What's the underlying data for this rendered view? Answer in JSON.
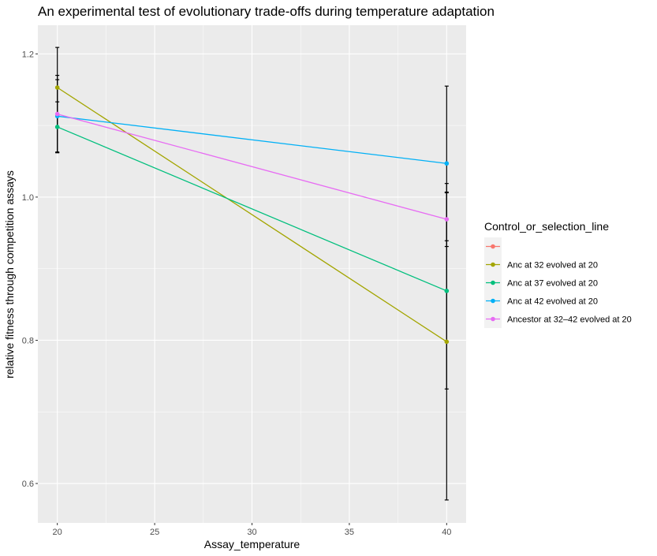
{
  "chart_data": {
    "type": "line",
    "title": "An experimental test of evolutionary trade-offs during temperature adaptation",
    "xlabel": "Assay_temperature",
    "ylabel": "relative fitness through competition assays",
    "xlim": [
      19,
      41
    ],
    "ylim": [
      0.545,
      1.24
    ],
    "x_ticks": [
      20,
      25,
      30,
      35,
      40
    ],
    "x_tick_labels": [
      "20",
      "25",
      "30",
      "35",
      "40"
    ],
    "y_ticks": [
      0.6,
      0.8,
      1.0,
      1.2
    ],
    "y_tick_labels": [
      "0.6",
      "0.8",
      "1.0",
      "1.2"
    ],
    "grid": true,
    "legend": {
      "title": "Control_or_selection_line",
      "position": "right"
    },
    "series": [
      {
        "name": "",
        "color": "#F8766D",
        "points": []
      },
      {
        "name": "Anc at 32 evolved at 20",
        "color": "#A3A500",
        "points": [
          {
            "x": 20,
            "y": 1.153,
            "ymin": 1.097,
            "ymax": 1.209
          },
          {
            "x": 40,
            "y": 0.798,
            "ymin": 0.577,
            "ymax": 1.019
          }
        ]
      },
      {
        "name": "Anc at 37 evolved at 20",
        "color": "#00BF7D",
        "points": [
          {
            "x": 20,
            "y": 1.098,
            "ymin": 1.063,
            "ymax": 1.133
          },
          {
            "x": 40,
            "y": 0.869,
            "ymin": 0.732,
            "ymax": 1.006
          }
        ]
      },
      {
        "name": "Anc at 42 evolved at 20",
        "color": "#00B0F6",
        "points": [
          {
            "x": 20,
            "y": 1.113,
            "ymin": 1.062,
            "ymax": 1.164
          },
          {
            "x": 40,
            "y": 1.047,
            "ymin": 0.939,
            "ymax": 1.155
          }
        ]
      },
      {
        "name": "Ancestor at 32–42 evolved at 20",
        "color": "#E76BF3",
        "points": [
          {
            "x": 20,
            "y": 1.116,
            "ymin": 1.062,
            "ymax": 1.17
          },
          {
            "x": 40,
            "y": 0.969,
            "ymin": 0.931,
            "ymax": 1.007
          }
        ]
      }
    ]
  }
}
